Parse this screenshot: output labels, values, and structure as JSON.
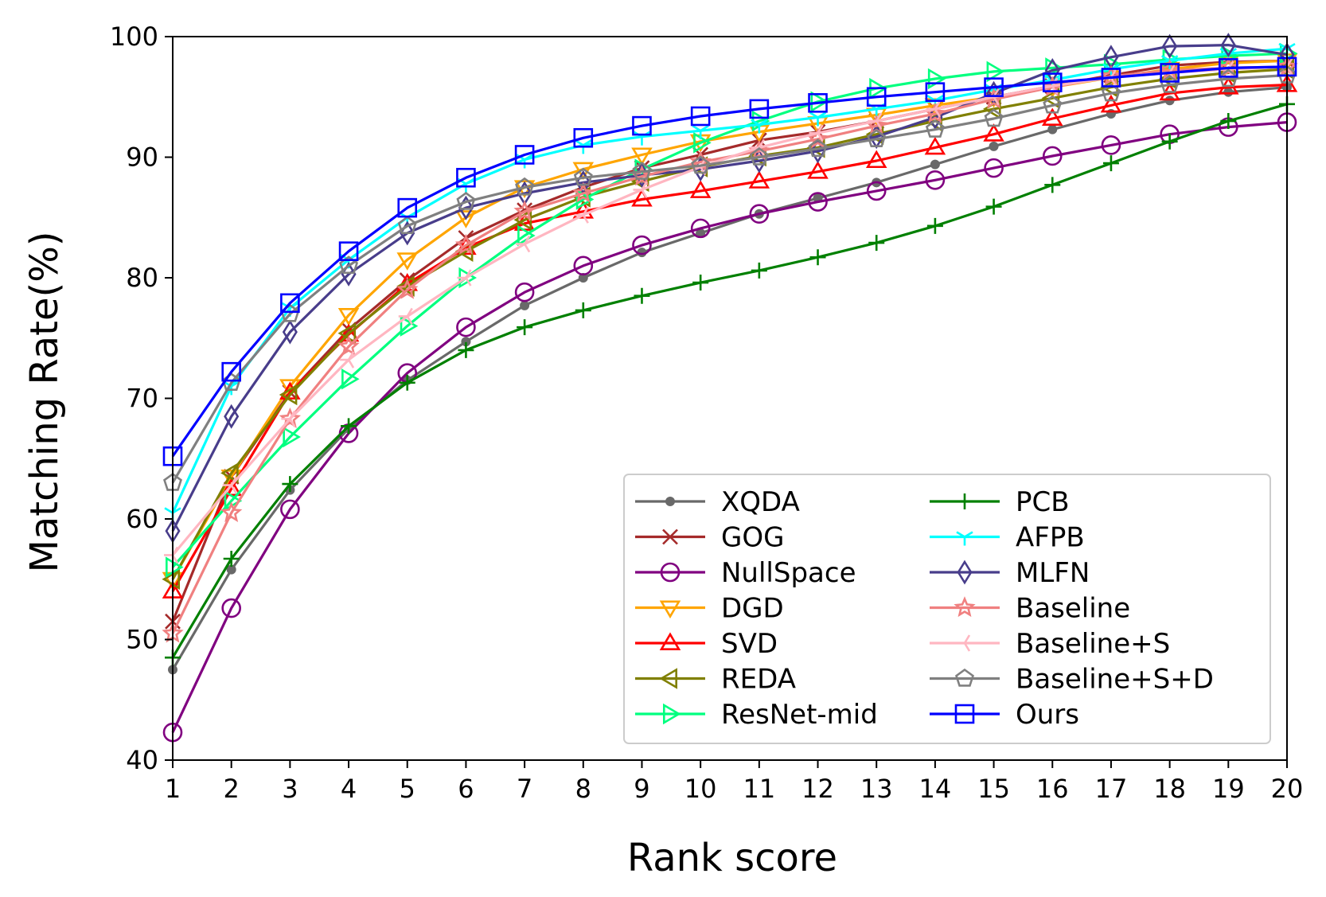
{
  "chart_data": {
    "type": "line",
    "title": "",
    "xlabel": "Rank score",
    "ylabel": "Matching Rate(%)",
    "xlim": [
      1,
      20
    ],
    "ylim": [
      40,
      100
    ],
    "x": [
      1,
      2,
      3,
      4,
      5,
      6,
      7,
      8,
      9,
      10,
      11,
      12,
      13,
      14,
      15,
      16,
      17,
      18,
      19,
      20
    ],
    "xticks": [
      "1",
      "2",
      "3",
      "4",
      "5",
      "6",
      "7",
      "8",
      "9",
      "10",
      "11",
      "12",
      "13",
      "14",
      "15",
      "16",
      "17",
      "18",
      "19",
      "20"
    ],
    "yticks": [
      "40",
      "50",
      "60",
      "70",
      "80",
      "90",
      "100"
    ],
    "legend_position": "lower-right",
    "series": [
      {
        "name": "XQDA",
        "color": "#696969",
        "marker": "dot",
        "values": [
          47.5,
          55.8,
          62.4,
          67.5,
          71.5,
          74.7,
          77.7,
          80.0,
          82.1,
          83.7,
          85.3,
          86.6,
          87.9,
          89.4,
          90.9,
          92.3,
          93.6,
          94.7,
          95.4,
          95.8
        ]
      },
      {
        "name": "GOG",
        "color": "#a52a2a",
        "marker": "x",
        "values": [
          51.5,
          63.5,
          70.5,
          75.7,
          79.8,
          83.3,
          85.6,
          87.5,
          89.1,
          90.2,
          91.4,
          92.1,
          93.0,
          94.0,
          95.0,
          95.9,
          96.8,
          97.6,
          97.9,
          98.0
        ]
      },
      {
        "name": "NullSpace",
        "color": "#800080",
        "marker": "circle",
        "values": [
          42.3,
          52.6,
          60.8,
          67.1,
          72.1,
          75.9,
          78.8,
          81.0,
          82.7,
          84.1,
          85.3,
          86.3,
          87.2,
          88.1,
          89.1,
          90.1,
          91.0,
          91.9,
          92.5,
          92.9
        ]
      },
      {
        "name": "DGD",
        "color": "#ffa500",
        "marker": "tri-down",
        "values": [
          55.0,
          63.5,
          71.0,
          76.9,
          81.5,
          85.0,
          87.5,
          89.0,
          90.2,
          91.3,
          92.1,
          92.8,
          93.5,
          94.3,
          95.0,
          95.8,
          96.6,
          97.3,
          97.8,
          98.0
        ]
      },
      {
        "name": "SVD",
        "color": "#ff0000",
        "marker": "tri-up",
        "values": [
          54.0,
          62.5,
          70.5,
          75.3,
          79.5,
          82.5,
          84.5,
          85.5,
          86.5,
          87.2,
          88.0,
          88.8,
          89.7,
          90.8,
          91.9,
          93.2,
          94.3,
          95.3,
          95.8,
          96.0
        ]
      },
      {
        "name": "REDA",
        "color": "#808000",
        "marker": "tri-left",
        "values": [
          55.0,
          63.8,
          70.3,
          75.4,
          79.3,
          82.2,
          84.8,
          86.7,
          88.0,
          89.2,
          90.1,
          90.8,
          91.9,
          93.0,
          94.0,
          94.9,
          95.8,
          96.5,
          97.0,
          97.3
        ]
      },
      {
        "name": "ResNet-mid",
        "color": "#00ff7f",
        "marker": "tri-right",
        "values": [
          56.0,
          61.5,
          66.8,
          71.6,
          76.0,
          80.0,
          83.5,
          86.5,
          89.0,
          91.2,
          93.0,
          94.6,
          95.7,
          96.5,
          97.1,
          97.4,
          97.7,
          98.1,
          98.4,
          98.6
        ]
      },
      {
        "name": "PCB",
        "color": "#008000",
        "marker": "plus",
        "values": [
          48.5,
          56.7,
          62.9,
          67.7,
          71.3,
          74.0,
          75.9,
          77.3,
          78.5,
          79.6,
          80.6,
          81.7,
          82.9,
          84.3,
          85.9,
          87.7,
          89.5,
          91.3,
          93.0,
          94.4
        ]
      },
      {
        "name": "AFPB",
        "color": "#00ffff",
        "marker": "tri-down-thin",
        "values": [
          60.5,
          71.0,
          77.5,
          81.5,
          85.0,
          87.8,
          89.8,
          91.0,
          91.7,
          92.2,
          92.7,
          93.3,
          94.0,
          94.7,
          95.6,
          96.4,
          97.3,
          98.0,
          98.6,
          99.0
        ]
      },
      {
        "name": "MLFN",
        "color": "#483d8b",
        "marker": "diamond",
        "values": [
          59.0,
          68.5,
          75.5,
          80.3,
          83.7,
          85.8,
          87.0,
          87.9,
          88.5,
          89.0,
          89.7,
          90.5,
          91.7,
          93.3,
          95.3,
          97.2,
          98.3,
          99.2,
          99.3,
          98.5
        ]
      },
      {
        "name": "Baseline",
        "color": "#f08080",
        "marker": "star",
        "values": [
          50.5,
          60.5,
          68.3,
          74.3,
          79.0,
          82.7,
          85.5,
          87.0,
          88.4,
          89.6,
          90.5,
          91.5,
          92.6,
          93.6,
          94.8,
          95.8,
          96.7,
          97.2,
          97.4,
          97.5
        ]
      },
      {
        "name": "Baseline+S",
        "color": "#ffb6c1",
        "marker": "tri-left-thin",
        "values": [
          57.0,
          62.8,
          68.3,
          73.2,
          76.8,
          80.0,
          82.8,
          85.2,
          87.3,
          89.2,
          90.8,
          92.0,
          93.0,
          94.0,
          95.0,
          95.9,
          96.6,
          97.0,
          97.3,
          97.5
        ]
      },
      {
        "name": "Baseline+S+D",
        "color": "#808080",
        "marker": "pentagon",
        "values": [
          63.0,
          71.3,
          77.0,
          81.0,
          84.3,
          86.3,
          87.5,
          88.3,
          88.8,
          89.3,
          90.0,
          90.7,
          91.5,
          92.3,
          93.2,
          94.3,
          95.3,
          96.0,
          96.5,
          96.8
        ]
      },
      {
        "name": "Ours",
        "color": "#0000ff",
        "marker": "square",
        "values": [
          65.2,
          72.2,
          77.9,
          82.2,
          85.8,
          88.3,
          90.2,
          91.6,
          92.6,
          93.4,
          94.0,
          94.5,
          95.0,
          95.4,
          95.8,
          96.2,
          96.6,
          97.0,
          97.4,
          97.5
        ]
      }
    ]
  }
}
